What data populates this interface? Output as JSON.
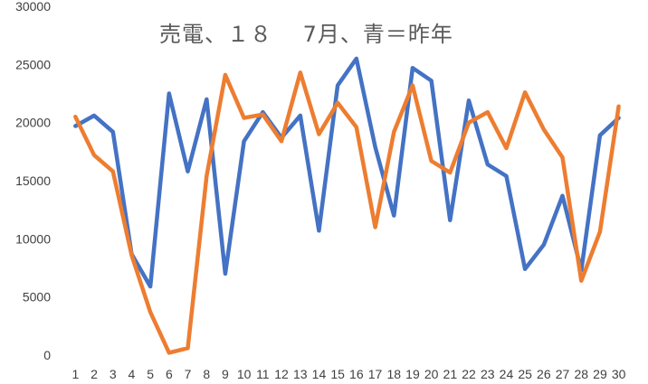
{
  "chart_data": {
    "type": "line",
    "title": "売電、１８　 7月、青＝昨年",
    "xlabel": "",
    "ylabel": "",
    "categories": [
      "1",
      "2",
      "3",
      "4",
      "5",
      "6",
      "7",
      "8",
      "9",
      "10",
      "11",
      "12",
      "13",
      "14",
      "15",
      "16",
      "17",
      "18",
      "19",
      "20",
      "21",
      "22",
      "23",
      "24",
      "25",
      "26",
      "27",
      "28",
      "29",
      "30"
    ],
    "ylim": [
      0,
      30000
    ],
    "yticks": [
      "0",
      "5000",
      "10000",
      "15000",
      "20000",
      "25000",
      "30000"
    ],
    "grid": false,
    "legend": "none",
    "series": [
      {
        "color": "#4472C4",
        "values": [
          19700,
          20600,
          19200,
          8700,
          5900,
          22500,
          15800,
          22000,
          7000,
          18400,
          20900,
          18700,
          20600,
          10700,
          23200,
          25500,
          17900,
          12000,
          24700,
          23600,
          11600,
          21900,
          16400,
          15400,
          7400,
          9500,
          13700,
          7300,
          18900,
          20400
        ]
      },
      {
        "color": "#ED7D31",
        "values": [
          20500,
          17200,
          15800,
          8600,
          3700,
          200,
          600,
          15400,
          24100,
          20400,
          20700,
          18400,
          24300,
          19000,
          21700,
          19600,
          11000,
          19200,
          23200,
          16700,
          15700,
          20000,
          20900,
          17800,
          22600,
          19400,
          17000,
          6400,
          10600,
          21400
        ]
      }
    ]
  }
}
